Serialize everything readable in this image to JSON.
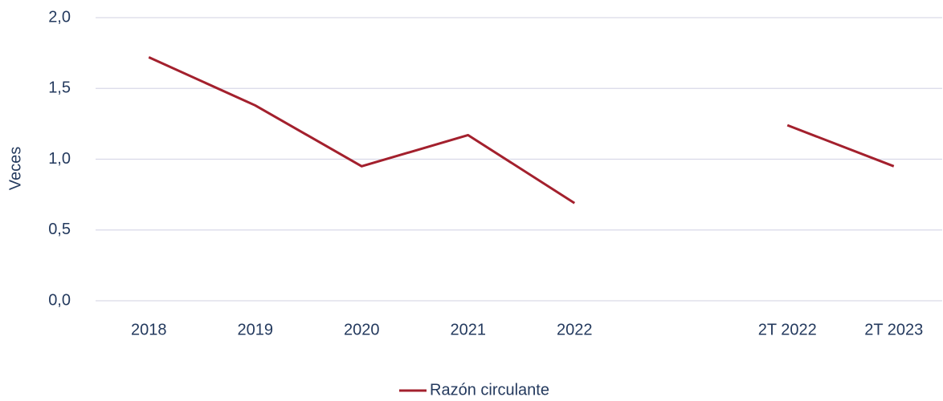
{
  "chart_data": {
    "type": "line",
    "y_label": "Veces",
    "categories": [
      "2018",
      "2019",
      "2020",
      "2021",
      "2022",
      null,
      "2T 2022",
      "2T 2023"
    ],
    "series": [
      {
        "name": "Razón circulante",
        "color": "#a3202d",
        "values": [
          1.72,
          1.38,
          0.95,
          1.17,
          0.69,
          null,
          1.24,
          0.95
        ]
      }
    ],
    "ylim": [
      0,
      2
    ],
    "yticks": [
      {
        "value": 0,
        "label": "0,0"
      },
      {
        "value": 0.5,
        "label": "0,5"
      },
      {
        "value": 1,
        "label": "1,0"
      },
      {
        "value": 1.5,
        "label": "1,5"
      },
      {
        "value": 2,
        "label": "2,0"
      }
    ],
    "grid": true,
    "legend": "bottom"
  }
}
